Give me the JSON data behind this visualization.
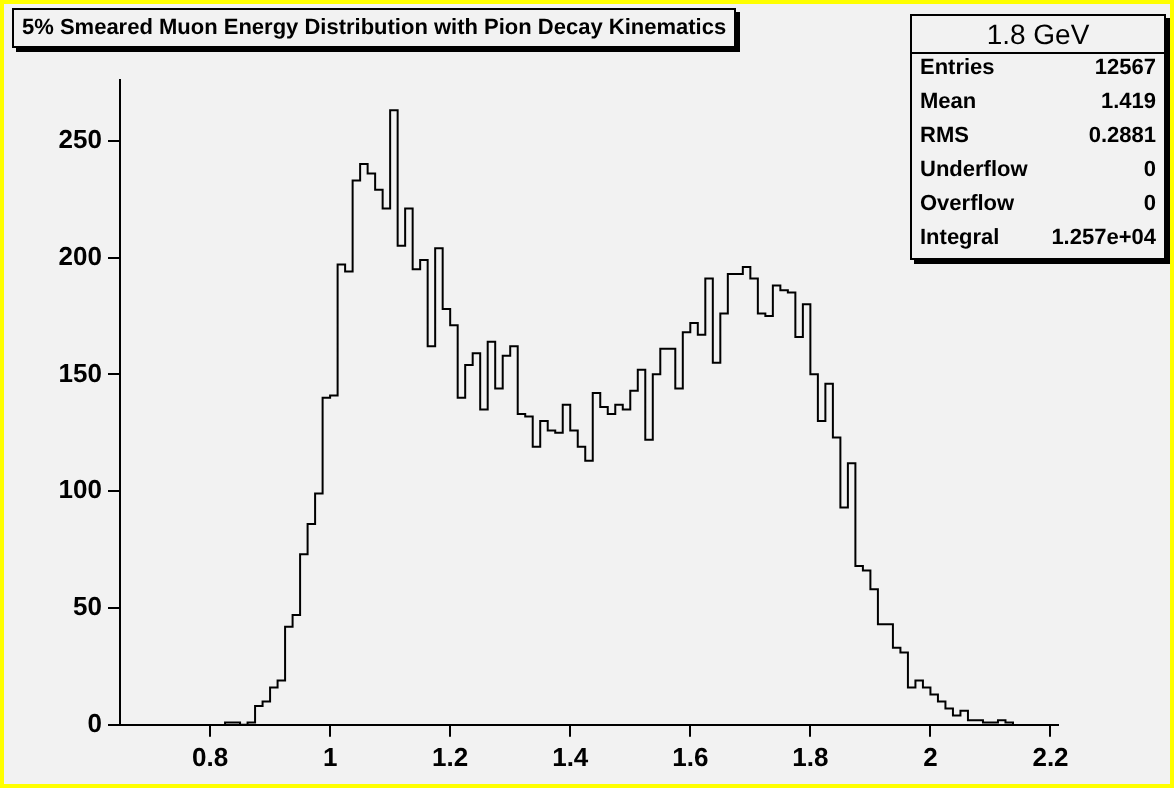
{
  "chart_data": {
    "type": "histogram",
    "title": "5% Smeared Muon Energy Distribution with Pion Decay Kinematics",
    "annotations": [
      "1.8 GeV",
      "Entries",
      "12567",
      "Mean",
      "1.419",
      "RMS",
      "0.2881",
      "Underflow",
      "0",
      "Overflow",
      "0",
      "Integral",
      "1.257e+04"
    ],
    "bins": [
      0.825,
      0.8375,
      0.85,
      0.8625,
      0.875,
      0.8875,
      0.9,
      0.9125,
      0.925,
      0.9375,
      0.95,
      0.9625,
      0.975,
      0.9875,
      1.0,
      1.0125,
      1.025,
      1.0375,
      1.05,
      1.0625,
      1.075,
      1.0875,
      1.1,
      1.1125,
      1.125,
      1.1375,
      1.15,
      1.1625,
      1.175,
      1.1875,
      1.2,
      1.2125,
      1.225,
      1.2375,
      1.25,
      1.2625,
      1.275,
      1.2875,
      1.3,
      1.3125,
      1.325,
      1.3375,
      1.35,
      1.3625,
      1.375,
      1.3875,
      1.4,
      1.4125,
      1.425,
      1.4375,
      1.45,
      1.4625,
      1.475,
      1.4875,
      1.5,
      1.5125,
      1.525,
      1.5375,
      1.55,
      1.5625,
      1.575,
      1.5875,
      1.6,
      1.6125,
      1.625,
      1.6375,
      1.65,
      1.6625,
      1.675,
      1.6875,
      1.7,
      1.7125,
      1.725,
      1.7375,
      1.75,
      1.7625,
      1.775,
      1.7875,
      1.8,
      1.8125,
      1.825,
      1.8375,
      1.85,
      1.8625,
      1.875,
      1.8875,
      1.9,
      1.9125,
      1.925,
      1.9375,
      1.95,
      1.9625,
      1.975,
      1.9875,
      2.0,
      2.0125,
      2.025,
      2.0375,
      2.05,
      2.0625,
      2.075,
      2.0875,
      2.1,
      2.1125,
      2.125,
      2.1375
    ],
    "values": [
      1,
      1,
      0,
      1,
      8,
      10,
      16,
      19,
      42,
      47,
      73,
      86,
      99,
      140,
      141,
      197,
      194,
      233,
      240,
      236,
      229,
      221,
      263,
      205,
      221,
      195,
      199,
      162,
      204,
      178,
      171,
      140,
      154,
      159,
      135,
      164,
      144,
      158,
      162,
      133,
      132,
      119,
      130,
      126,
      125,
      137,
      126,
      119,
      113,
      142,
      136,
      133,
      137,
      135,
      143,
      152,
      122,
      150,
      161,
      161,
      144,
      168,
      172,
      167,
      191,
      155,
      176,
      193,
      193,
      196,
      191,
      176,
      175,
      188,
      186,
      185,
      166,
      180,
      150,
      130,
      146,
      123,
      93,
      112,
      68,
      66,
      58,
      43,
      43,
      33,
      31,
      16,
      19,
      16,
      13,
      10,
      7,
      4,
      6,
      2,
      2,
      1,
      1,
      2,
      1
    ],
    "color": "#000000",
    "xlim": [
      0.65,
      2.2125
    ],
    "xticks": [
      0.8,
      1,
      1.2,
      1.4,
      1.6,
      1.8,
      2,
      2.2
    ],
    "ylim": [
      0,
      276
    ],
    "yticks": [
      0,
      50,
      100,
      150,
      200,
      250
    ],
    "grid": false,
    "legend": false
  }
}
